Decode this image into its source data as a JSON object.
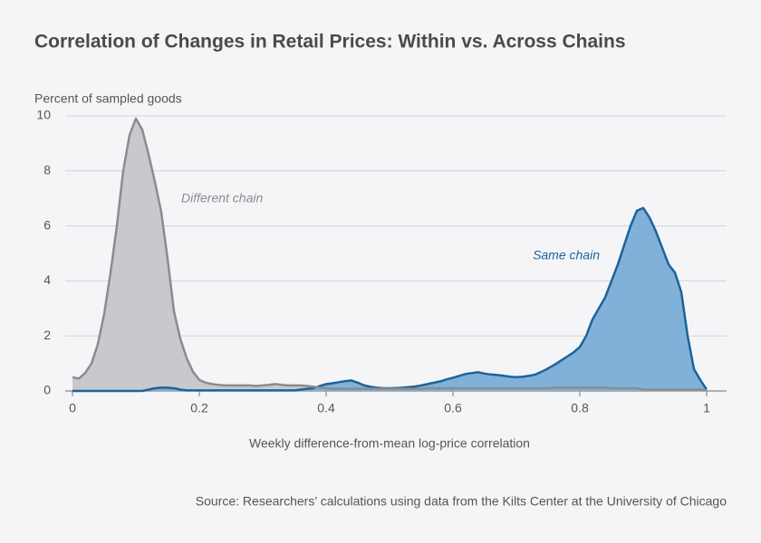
{
  "chart_data": {
    "type": "area",
    "title": "Correlation of Changes in Retail Prices: Within vs. Across Chains",
    "y_label": "Percent of sampled goods",
    "x_label": "Weekly difference-from-mean log-price correlation",
    "source": "Source: Researchers’ calculations using data from the Kilts Center at the University of Chicago",
    "x": [
      0,
      0.01,
      0.02,
      0.03,
      0.04,
      0.05,
      0.06,
      0.07,
      0.08,
      0.09,
      0.1,
      0.11,
      0.12,
      0.13,
      0.14,
      0.15,
      0.16,
      0.17,
      0.18,
      0.19,
      0.2,
      0.21,
      0.22,
      0.23,
      0.24,
      0.25,
      0.26,
      0.27,
      0.28,
      0.29,
      0.3,
      0.31,
      0.32,
      0.33,
      0.34,
      0.35,
      0.36,
      0.37,
      0.38,
      0.39,
      0.4,
      0.41,
      0.42,
      0.43,
      0.44,
      0.45,
      0.46,
      0.47,
      0.48,
      0.49,
      0.5,
      0.51,
      0.52,
      0.53,
      0.54,
      0.55,
      0.56,
      0.57,
      0.58,
      0.59,
      0.6,
      0.61,
      0.62,
      0.63,
      0.64,
      0.65,
      0.66,
      0.67,
      0.68,
      0.69,
      0.7,
      0.71,
      0.72,
      0.73,
      0.74,
      0.75,
      0.76,
      0.77,
      0.78,
      0.79,
      0.8,
      0.81,
      0.82,
      0.83,
      0.84,
      0.85,
      0.86,
      0.87,
      0.88,
      0.89,
      0.9,
      0.91,
      0.92,
      0.93,
      0.94,
      0.95,
      0.96,
      0.97,
      0.98,
      0.99,
      1
    ],
    "series": [
      {
        "name": "Different chain",
        "color": "#8b8c90",
        "fill": "#c5c6c9",
        "values": [
          0.5,
          0.45,
          0.65,
          1.0,
          1.7,
          2.8,
          4.3,
          6.0,
          8.0,
          9.3,
          9.9,
          9.5,
          8.6,
          7.6,
          6.5,
          4.8,
          2.9,
          1.9,
          1.2,
          0.7,
          0.4,
          0.3,
          0.25,
          0.22,
          0.2,
          0.2,
          0.2,
          0.2,
          0.2,
          0.18,
          0.2,
          0.22,
          0.25,
          0.22,
          0.2,
          0.2,
          0.2,
          0.18,
          0.15,
          0.12,
          0.1,
          0.08,
          0.08,
          0.08,
          0.08,
          0.08,
          0.08,
          0.08,
          0.08,
          0.08,
          0.08,
          0.08,
          0.08,
          0.08,
          0.08,
          0.08,
          0.1,
          0.1,
          0.1,
          0.1,
          0.1,
          0.1,
          0.1,
          0.1,
          0.1,
          0.1,
          0.1,
          0.1,
          0.1,
          0.1,
          0.1,
          0.1,
          0.1,
          0.1,
          0.1,
          0.1,
          0.12,
          0.12,
          0.12,
          0.12,
          0.12,
          0.12,
          0.12,
          0.12,
          0.12,
          0.1,
          0.1,
          0.1,
          0.1,
          0.1,
          0.05,
          0.05,
          0.05,
          0.05,
          0.05,
          0.05,
          0.05,
          0.05,
          0.05,
          0.05,
          0.02
        ]
      },
      {
        "name": "Same chain",
        "color": "#1a649c",
        "fill": "#7aadd6",
        "values": [
          0,
          0,
          0,
          0,
          0,
          0,
          0,
          0,
          0,
          0,
          0,
          0,
          0.05,
          0.1,
          0.12,
          0.12,
          0.1,
          0.05,
          0.02,
          0.02,
          0.02,
          0.02,
          0.02,
          0.02,
          0.02,
          0.02,
          0.02,
          0.02,
          0.02,
          0.02,
          0.02,
          0.02,
          0.02,
          0.02,
          0.02,
          0.02,
          0.05,
          0.08,
          0.1,
          0.18,
          0.25,
          0.28,
          0.32,
          0.36,
          0.38,
          0.3,
          0.2,
          0.15,
          0.12,
          0.1,
          0.1,
          0.11,
          0.12,
          0.14,
          0.16,
          0.2,
          0.25,
          0.3,
          0.35,
          0.42,
          0.48,
          0.55,
          0.62,
          0.65,
          0.68,
          0.63,
          0.6,
          0.58,
          0.55,
          0.52,
          0.5,
          0.52,
          0.55,
          0.6,
          0.7,
          0.82,
          0.95,
          1.1,
          1.25,
          1.4,
          1.6,
          2.0,
          2.6,
          3.0,
          3.4,
          4.0,
          4.6,
          5.3,
          6.0,
          6.55,
          6.65,
          6.3,
          5.8,
          5.2,
          4.6,
          4.3,
          3.6,
          2.0,
          0.8,
          0.4,
          0.05
        ]
      }
    ],
    "xlim": [
      0,
      1
    ],
    "xticks": [
      0,
      0.2,
      0.4,
      0.6,
      0.8,
      1
    ],
    "ylim": [
      0,
      10
    ],
    "yticks": [
      0,
      2,
      4,
      6,
      8,
      10
    ],
    "grid": true
  }
}
